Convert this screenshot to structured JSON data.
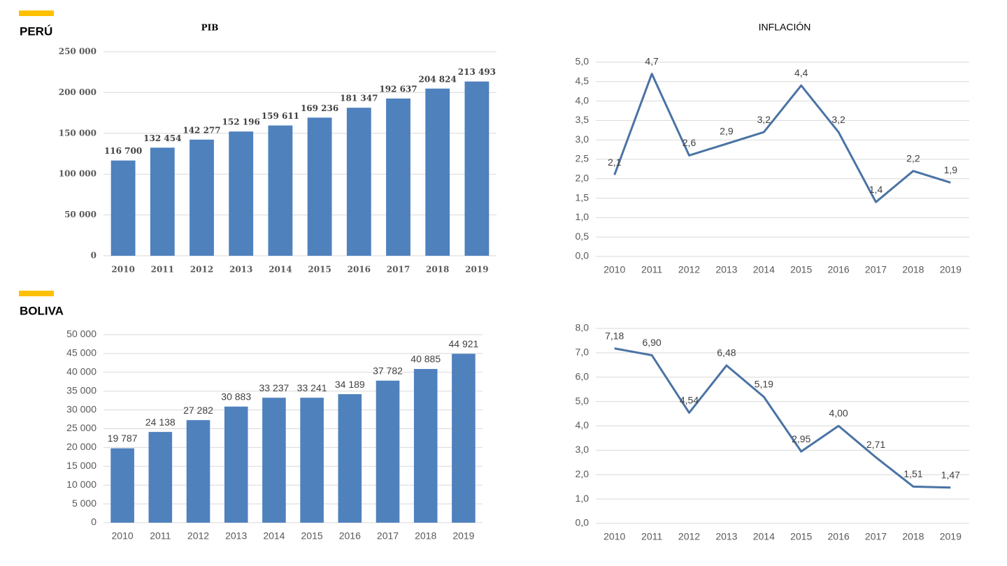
{
  "sections": [
    {
      "label": "PERÚ"
    },
    {
      "label": "BOLIVA"
    }
  ],
  "chart_data": [
    {
      "type": "bar",
      "title": "PIB",
      "categories": [
        "2010",
        "2011",
        "2012",
        "2013",
        "2014",
        "2015",
        "2016",
        "2017",
        "2018",
        "2019"
      ],
      "values": [
        116700,
        132454,
        142277,
        152196,
        159611,
        169236,
        181347,
        192637,
        204824,
        213493
      ],
      "value_labels": [
        "116 700",
        "132 454",
        "142 277",
        "152 196",
        "159 611",
        "169 236",
        "181 347",
        "192 637",
        "204 824",
        "213 493"
      ],
      "color": "#4f81bd",
      "ylim": [
        0,
        250000
      ],
      "yticks": [
        0,
        {
          "value": 50000,
          "label": "50 000"
        },
        {
          "value": 100000,
          "label": "100 000"
        },
        {
          "value": 150000,
          "label": "150 000"
        },
        {
          "value": 200000,
          "label": "200 000"
        },
        {
          "value": 250000,
          "label": "250 000"
        }
      ],
      "grid": true
    },
    {
      "type": "line",
      "title": "INFLACIÓN",
      "categories": [
        "2010",
        "2011",
        "2012",
        "2013",
        "2014",
        "2015",
        "2016",
        "2017",
        "2018",
        "2019"
      ],
      "values": [
        2.1,
        4.7,
        2.6,
        2.9,
        3.2,
        4.4,
        3.2,
        1.4,
        2.2,
        1.9
      ],
      "value_labels": [
        "2,1",
        "4,7",
        "2,6",
        "2,9",
        "3,2",
        "4,4",
        "3,2",
        "1,4",
        "2,2",
        "1,9"
      ],
      "color": "#4a73a4",
      "ylim": [
        0,
        5
      ],
      "yticks": [
        {
          "value": 0,
          "label": "0,0"
        },
        {
          "value": 0.5,
          "label": "0,5"
        },
        {
          "value": 1,
          "label": "1,0"
        },
        {
          "value": 1.5,
          "label": "1,5"
        },
        {
          "value": 2,
          "label": "2,0"
        },
        {
          "value": 2.5,
          "label": "2,5"
        },
        {
          "value": 3,
          "label": "3,0"
        },
        {
          "value": 3.5,
          "label": "3,5"
        },
        {
          "value": 4,
          "label": "4,0"
        },
        {
          "value": 4.5,
          "label": "4,5"
        },
        {
          "value": 5,
          "label": "5,0"
        }
      ],
      "grid": true
    },
    {
      "type": "bar",
      "categories": [
        "2010",
        "2011",
        "2012",
        "2013",
        "2014",
        "2015",
        "2016",
        "2017",
        "2018",
        "2019"
      ],
      "values": [
        19787,
        24138,
        27282,
        30883,
        33237,
        33241,
        34189,
        37782,
        40885,
        44921
      ],
      "value_labels": [
        "19 787",
        "24 138",
        "27 282",
        "30 883",
        "33 237",
        "33 241",
        "34 189",
        "37 782",
        "40 885",
        "44 921"
      ],
      "color": "#4f81bd",
      "ylim": [
        0,
        50000
      ],
      "yticks": [
        0,
        {
          "value": 5000,
          "label": "5 000"
        },
        {
          "value": 10000,
          "label": "10 000"
        },
        {
          "value": 15000,
          "label": "15 000"
        },
        {
          "value": 20000,
          "label": "20 000"
        },
        {
          "value": 25000,
          "label": "25 000"
        },
        {
          "value": 30000,
          "label": "30 000"
        },
        {
          "value": 35000,
          "label": "35 000"
        },
        {
          "value": 40000,
          "label": "40 000"
        },
        {
          "value": 45000,
          "label": "45 000"
        },
        {
          "value": 50000,
          "label": "50 000"
        }
      ],
      "grid": true
    },
    {
      "type": "line",
      "categories": [
        "2010",
        "2011",
        "2012",
        "2013",
        "2014",
        "2015",
        "2016",
        "2017",
        "2018",
        "2019"
      ],
      "values": [
        7.18,
        6.9,
        4.54,
        6.48,
        5.19,
        2.95,
        4.0,
        2.71,
        1.51,
        1.47
      ],
      "value_labels": [
        "7,18",
        "6,90",
        "4,54",
        "6,48",
        "5,19",
        "2,95",
        "4,00",
        "2,71",
        "1,51",
        "1,47"
      ],
      "color": "#4a73a4",
      "ylim": [
        0,
        8
      ],
      "yticks": [
        {
          "value": 0,
          "label": "0,0"
        },
        {
          "value": 1,
          "label": "1,0"
        },
        {
          "value": 2,
          "label": "2,0"
        },
        {
          "value": 3,
          "label": "3,0"
        },
        {
          "value": 4,
          "label": "4,0"
        },
        {
          "value": 5,
          "label": "5,0"
        },
        {
          "value": 6,
          "label": "6,0"
        },
        {
          "value": 7,
          "label": "7,0"
        },
        {
          "value": 8,
          "label": "8,0"
        }
      ],
      "grid": true
    }
  ]
}
